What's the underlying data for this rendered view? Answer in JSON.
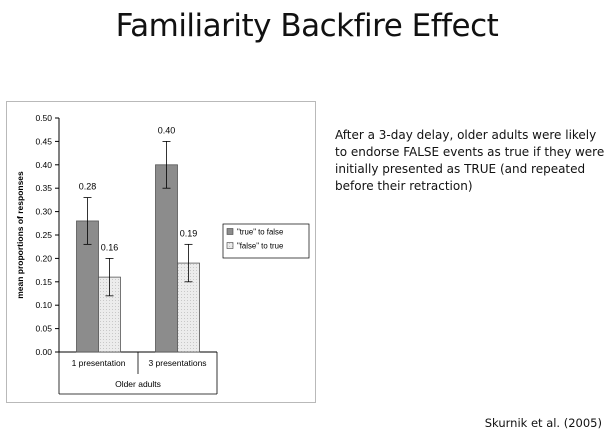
{
  "slide": {
    "title": "Familiarity Backfire Effect",
    "caption": "After a 3-day delay, older adults were likely to endorse FALSE events as true if they were initially presented as TRUE (and repeated before their retraction)",
    "citation": "Skurnik et al. (2005)"
  },
  "chart_data": {
    "type": "bar",
    "title": "",
    "xlabel": "Older adults",
    "ylabel": "mean proportions of responses",
    "ylim": [
      0,
      0.5
    ],
    "yticks": [
      "0.00",
      "0.05",
      "0.10",
      "0.15",
      "0.20",
      "0.25",
      "0.30",
      "0.35",
      "0.40",
      "0.45",
      "0.50"
    ],
    "categories": [
      "1 presentation",
      "3 presentations"
    ],
    "series": [
      {
        "name": "\"true\" to false",
        "values": [
          0.28,
          0.4
        ],
        "labels": [
          "0.28",
          "0.40"
        ],
        "error": [
          0.05,
          0.05
        ],
        "color": "#8c8c8c"
      },
      {
        "name": "\"false\" to true",
        "values": [
          0.16,
          0.19
        ],
        "labels": [
          "0.16",
          "0.19"
        ],
        "error": [
          0.04,
          0.04
        ],
        "color": "#e6e6e6"
      }
    ],
    "grid": false,
    "legend": "right"
  }
}
